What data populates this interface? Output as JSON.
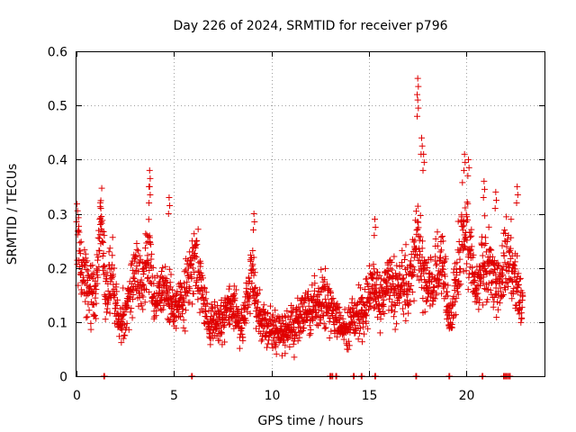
{
  "chart_data": {
    "type": "scatter",
    "title": "Day 226 of 2024, SRMTID for receiver p796",
    "xlabel": "GPS time / hours",
    "ylabel": "SRMTID / TECUs",
    "xlim": [
      0,
      24
    ],
    "ylim": [
      0,
      0.6
    ],
    "x_ticks": [
      0,
      5,
      10,
      15,
      20
    ],
    "x_tick_labels": [
      "0",
      "5",
      "10",
      "15",
      "20"
    ],
    "y_ticks": [
      0,
      0.1,
      0.2,
      0.3,
      0.4,
      0.5,
      0.6
    ],
    "y_tick_labels": [
      "0",
      "0.1",
      "0.2",
      "0.3",
      "0.4",
      "0.5",
      "0.6"
    ],
    "grid": true,
    "marker": "plus",
    "marker_color": "#e00000",
    "series": [
      {
        "name": "SRMTID",
        "x_range": [
          0.0,
          22.9
        ],
        "anchor_points": [
          [
            0.0,
            0.27
          ],
          [
            0.3,
            0.2
          ],
          [
            0.7,
            0.16
          ],
          [
            1.0,
            0.15
          ],
          [
            1.25,
            0.3
          ],
          [
            1.5,
            0.15
          ],
          [
            1.8,
            0.19
          ],
          [
            2.2,
            0.09
          ],
          [
            2.6,
            0.13
          ],
          [
            3.0,
            0.19
          ],
          [
            3.4,
            0.17
          ],
          [
            3.7,
            0.24
          ],
          [
            4.0,
            0.13
          ],
          [
            4.5,
            0.16
          ],
          [
            5.0,
            0.12
          ],
          [
            5.5,
            0.15
          ],
          [
            5.9,
            0.2
          ],
          [
            6.2,
            0.21
          ],
          [
            6.6,
            0.12
          ],
          [
            7.0,
            0.09
          ],
          [
            7.5,
            0.11
          ],
          [
            8.0,
            0.12
          ],
          [
            8.5,
            0.1
          ],
          [
            9.0,
            0.19
          ],
          [
            9.3,
            0.11
          ],
          [
            9.8,
            0.09
          ],
          [
            10.3,
            0.08
          ],
          [
            10.8,
            0.09
          ],
          [
            11.3,
            0.1
          ],
          [
            11.8,
            0.12
          ],
          [
            12.3,
            0.13
          ],
          [
            12.8,
            0.14
          ],
          [
            13.2,
            0.12
          ],
          [
            13.6,
            0.08
          ],
          [
            14.0,
            0.09
          ],
          [
            14.4,
            0.11
          ],
          [
            14.8,
            0.13
          ],
          [
            15.2,
            0.18
          ],
          [
            15.6,
            0.14
          ],
          [
            16.0,
            0.18
          ],
          [
            16.4,
            0.16
          ],
          [
            16.8,
            0.17
          ],
          [
            17.2,
            0.19
          ],
          [
            17.5,
            0.26
          ],
          [
            17.9,
            0.16
          ],
          [
            18.3,
            0.17
          ],
          [
            18.7,
            0.22
          ],
          [
            19.1,
            0.11
          ],
          [
            19.5,
            0.17
          ],
          [
            19.8,
            0.28
          ],
          [
            20.1,
            0.25
          ],
          [
            20.5,
            0.16
          ],
          [
            20.9,
            0.21
          ],
          [
            21.3,
            0.19
          ],
          [
            21.7,
            0.16
          ],
          [
            22.1,
            0.23
          ],
          [
            22.5,
            0.17
          ],
          [
            22.9,
            0.12
          ]
        ],
        "spikes": [
          [
            1.25,
            0.31
          ],
          [
            3.75,
            0.38
          ],
          [
            3.75,
            0.35
          ],
          [
            4.75,
            0.33
          ],
          [
            9.1,
            0.3
          ],
          [
            15.3,
            0.29
          ],
          [
            17.5,
            0.55
          ],
          [
            17.5,
            0.51
          ],
          [
            17.7,
            0.44
          ],
          [
            17.8,
            0.41
          ],
          [
            19.9,
            0.41
          ],
          [
            20.1,
            0.4
          ],
          [
            20.9,
            0.36
          ],
          [
            21.5,
            0.34
          ],
          [
            22.6,
            0.35
          ]
        ],
        "zero_points": [
          1.4,
          5.9,
          13.0,
          13.1,
          13.3,
          14.2,
          14.6,
          15.3,
          17.4,
          19.1,
          20.8,
          21.9,
          22.0,
          22.1,
          22.2
        ]
      }
    ]
  }
}
